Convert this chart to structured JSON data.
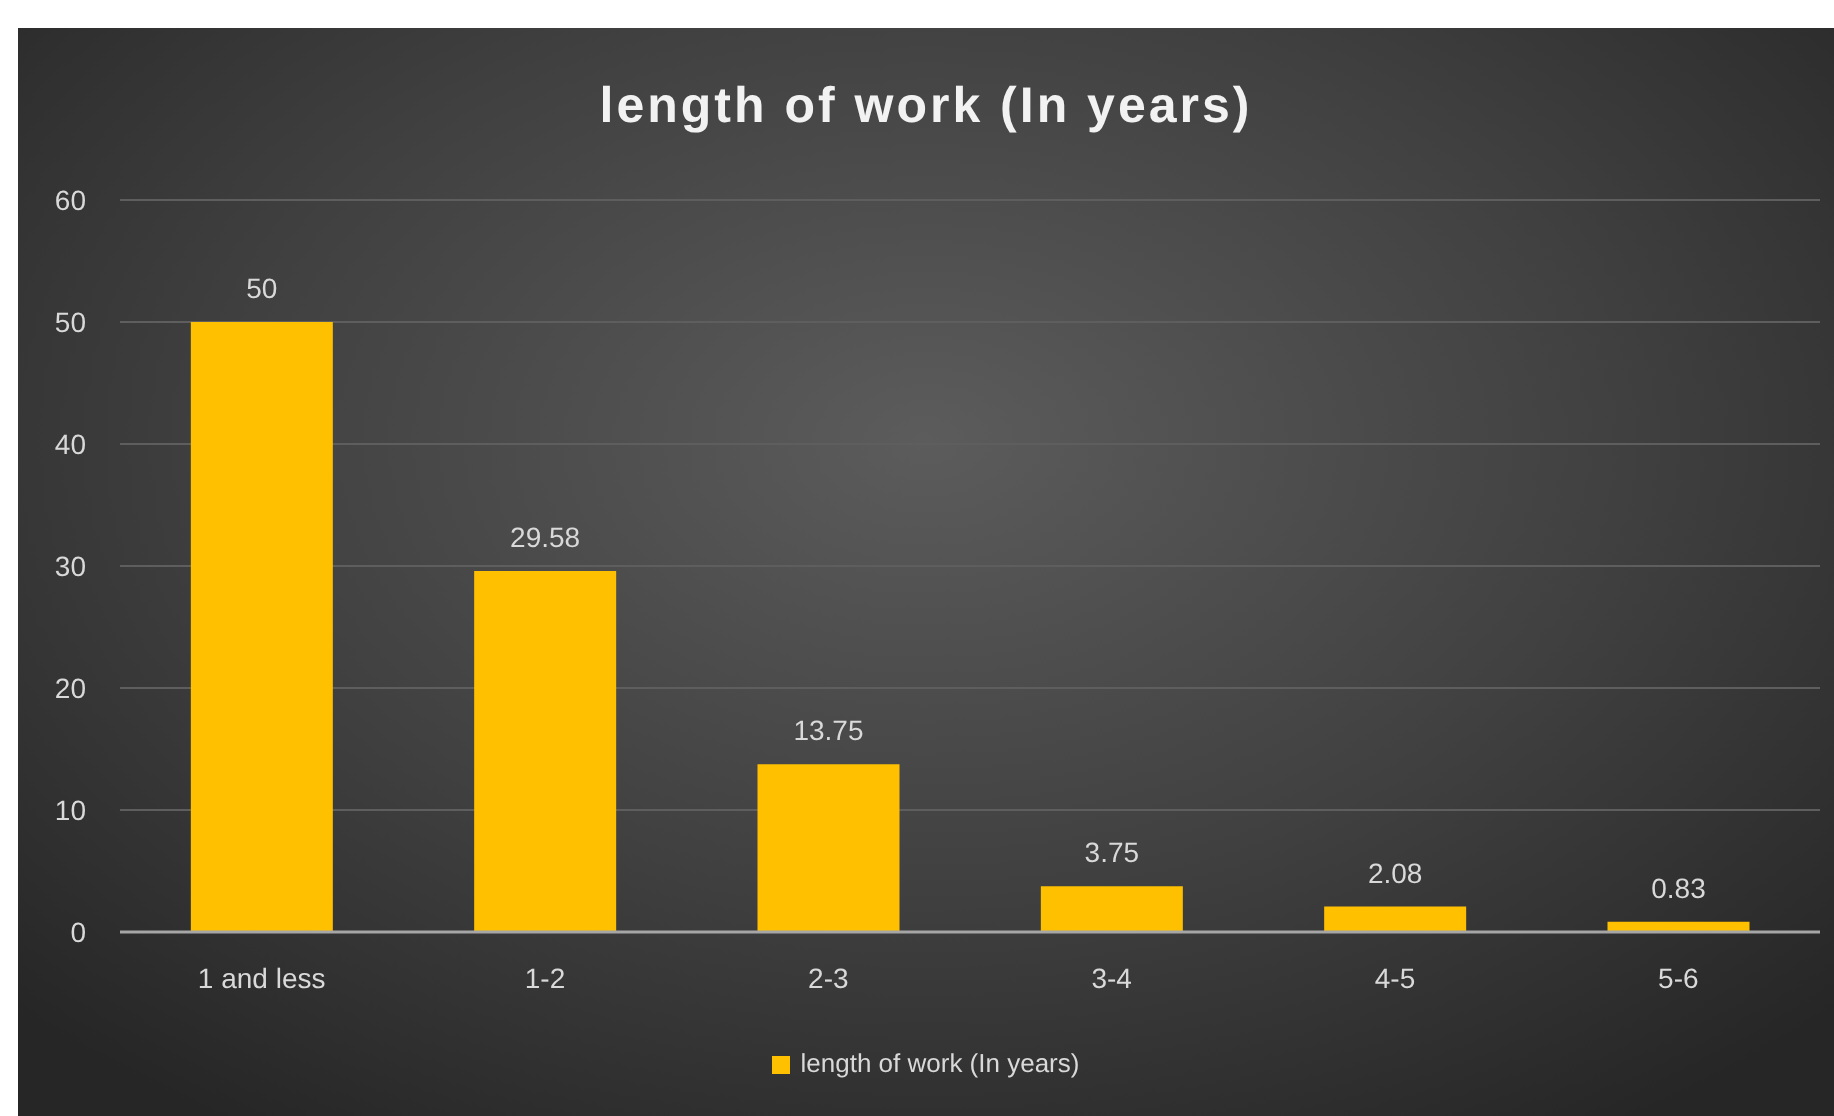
{
  "chart_data": {
    "type": "bar",
    "title": "length of work (In years)",
    "categories": [
      "1 and less",
      "1-2",
      "2-3",
      "3-4",
      "4-5",
      "5-6"
    ],
    "series": [
      {
        "name": "length of work (In years)",
        "color": "#ffc000",
        "values": [
          50,
          29.58,
          13.75,
          3.75,
          2.08,
          0.83
        ]
      }
    ],
    "ylim": [
      0,
      60
    ],
    "yticks": [
      0,
      10,
      20,
      30,
      40,
      50,
      60
    ],
    "grid": "y",
    "legend": "bottom",
    "data_labels": true
  }
}
